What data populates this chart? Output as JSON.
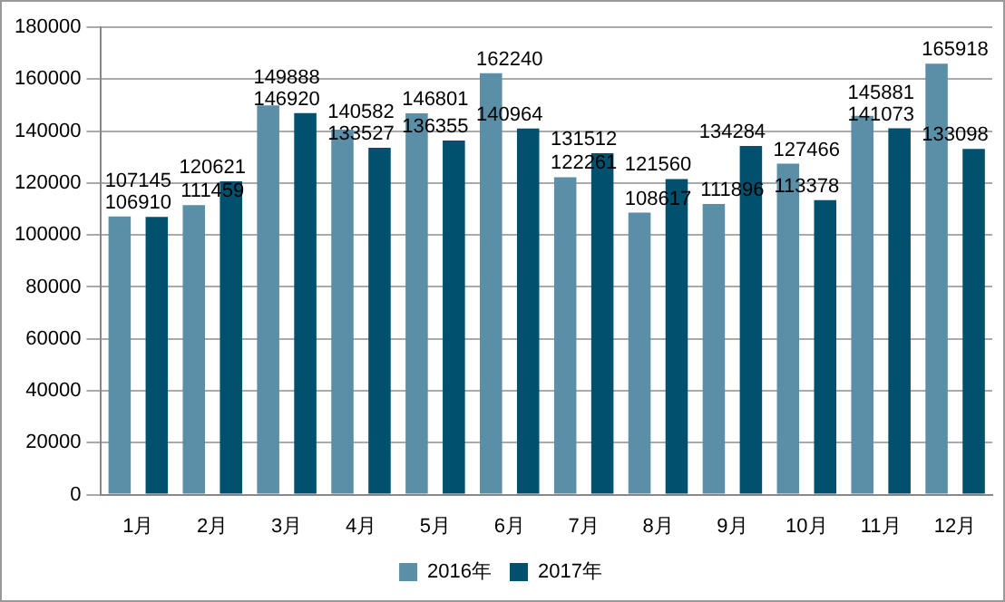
{
  "chart_data": {
    "type": "bar",
    "categories": [
      "1月",
      "2月",
      "3月",
      "4月",
      "5月",
      "6月",
      "7月",
      "8月",
      "9月",
      "10月",
      "11月",
      "12月"
    ],
    "series": [
      {
        "name": "2016年",
        "color": "#5b8fa8",
        "values": [
          107145,
          111459,
          149888,
          140582,
          146801,
          162240,
          122261,
          108617,
          111896,
          127466,
          145881,
          165918
        ]
      },
      {
        "name": "2017年",
        "color": "#00506e",
        "values": [
          106910,
          120621,
          146920,
          133527,
          136355,
          140964,
          131512,
          121560,
          134284,
          113378,
          141073,
          133098
        ]
      }
    ],
    "ylim": [
      0,
      180000
    ],
    "yticks": [
      0,
      20000,
      40000,
      60000,
      80000,
      100000,
      120000,
      140000,
      160000,
      180000
    ],
    "grid": "y",
    "legend": "bottom",
    "data_labels": true
  }
}
